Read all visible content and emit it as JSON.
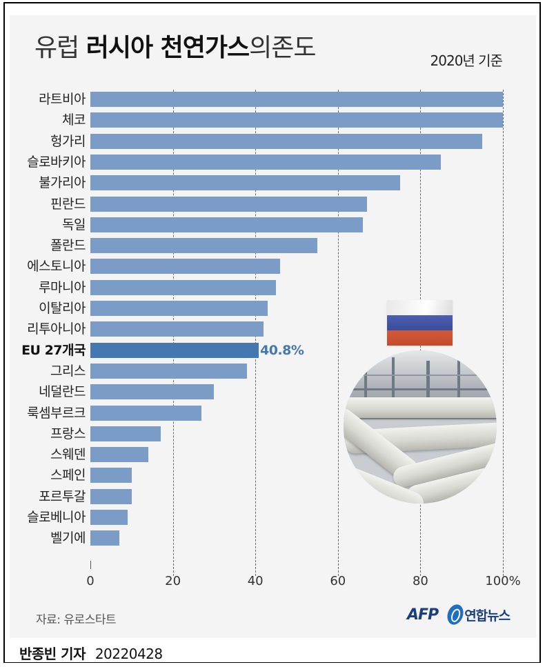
{
  "header": {
    "title_light_1": "유럽",
    "title_bold": "러시아 천연가스",
    "title_light_2": "의존도",
    "basis": "2020년 기준"
  },
  "colors": {
    "bar": "#7a9cc6",
    "highlight_bar": "#4478b0",
    "panel_bg": "#f4f4f4",
    "flag_white": "#f2f2f2",
    "flag_blue": "#3f50a3",
    "flag_red": "#cc5232"
  },
  "chart_data": {
    "type": "bar",
    "orientation": "horizontal",
    "title": "유럽 러시아 천연가스 의존도",
    "subtitle": "2020년 기준",
    "xlabel": "",
    "ylabel": "",
    "xlim": [
      0,
      100
    ],
    "x_ticks": [
      "0",
      "20",
      "40",
      "60",
      "80",
      "100%"
    ],
    "grid": "vertical dashed at 20, 40, 60, 80, 100",
    "categories": [
      "라트비아",
      "체코",
      "헝가리",
      "슬로바키아",
      "불가리아",
      "핀란드",
      "독일",
      "폴란드",
      "에스토니아",
      "루마니아",
      "이탈리아",
      "리투아니아",
      "EU 27개국",
      "그리스",
      "네덜란드",
      "룩셈부르크",
      "프랑스",
      "스웨덴",
      "스페인",
      "포르투갈",
      "슬로베니아",
      "벨기에"
    ],
    "values": [
      100,
      100,
      95,
      85,
      75,
      67,
      66,
      55,
      46,
      45,
      43,
      42,
      40.8,
      38,
      30,
      27,
      17,
      14,
      10,
      10,
      9,
      7
    ],
    "highlight": {
      "category": "EU 27개국",
      "label": "40.8%"
    },
    "source": "자료: 유로스타트"
  },
  "bars": [
    {
      "label": "라트비아",
      "value": 100
    },
    {
      "label": "체코",
      "value": 100
    },
    {
      "label": "헝가리",
      "value": 95
    },
    {
      "label": "슬로바키아",
      "value": 85
    },
    {
      "label": "불가리아",
      "value": 75
    },
    {
      "label": "핀란드",
      "value": 67
    },
    {
      "label": "독일",
      "value": 66
    },
    {
      "label": "폴란드",
      "value": 55
    },
    {
      "label": "에스토니아",
      "value": 46
    },
    {
      "label": "루마니아",
      "value": 45
    },
    {
      "label": "이탈리아",
      "value": 43
    },
    {
      "label": "리투아니아",
      "value": 42
    },
    {
      "label": "EU 27개국",
      "value": 40.8,
      "value_label": "40.8%",
      "highlight": true
    },
    {
      "label": "그리스",
      "value": 38
    },
    {
      "label": "네덜란드",
      "value": 30
    },
    {
      "label": "룩셈부르크",
      "value": 27
    },
    {
      "label": "프랑스",
      "value": 17
    },
    {
      "label": "스웨덴",
      "value": 14
    },
    {
      "label": "스페인",
      "value": 10
    },
    {
      "label": "포르투갈",
      "value": 10
    },
    {
      "label": "슬로베니아",
      "value": 9
    },
    {
      "label": "벨기에",
      "value": 7
    }
  ],
  "axis": {
    "ticks": [
      {
        "label": "0",
        "value": 0
      },
      {
        "label": "20",
        "value": 20
      },
      {
        "label": "40",
        "value": 40
      },
      {
        "label": "60",
        "value": 60
      },
      {
        "label": "80",
        "value": 80
      },
      {
        "label": "100%",
        "value": 100
      }
    ]
  },
  "footer": {
    "source": "자료: 유로스타트",
    "logo_afp": "AFP",
    "logo_yonhap": "연합뉴스",
    "reporter": "반종빈 기자",
    "date": "20220428"
  },
  "illustration": {
    "flag_icon": "russia-flag",
    "photo": "gas-pipeline-photo"
  }
}
